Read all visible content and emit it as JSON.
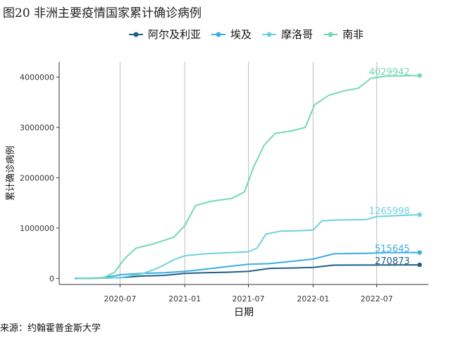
{
  "title": "图20 非洲主要疫情国家累计确诊病例",
  "source": "来源：约翰霍普金斯大学",
  "chart_data": {
    "type": "line",
    "title": "图20 非洲主要疫情国家累计确诊病例",
    "xlabel": "日期",
    "ylabel": "累计确诊病例",
    "x_ticks": [
      "2020-07",
      "2021-01",
      "2021-07",
      "2022-01",
      "2022-07"
    ],
    "y_ticks": [
      "0",
      "1000000",
      "2000000",
      "3000000",
      "4000000"
    ],
    "ylim": [
      -120000,
      4300000
    ],
    "xlim": [
      "2020-01-10",
      "2022-11-25"
    ],
    "grid": "vertical major lines only",
    "legend_position": "top",
    "series": [
      {
        "name": "阿尔及利亚",
        "color": "#1f5f87",
        "end_label": "270873",
        "points": [
          [
            "2020-02-25",
            0
          ],
          [
            "2020-05-01",
            4000
          ],
          [
            "2020-07-01",
            15000
          ],
          [
            "2020-09-01",
            48000
          ],
          [
            "2020-11-01",
            60000
          ],
          [
            "2021-01-01",
            100000
          ],
          [
            "2021-03-01",
            115000
          ],
          [
            "2021-05-01",
            123000
          ],
          [
            "2021-07-01",
            140000
          ],
          [
            "2021-09-01",
            200000
          ],
          [
            "2021-11-01",
            207000
          ],
          [
            "2022-01-01",
            220000
          ],
          [
            "2022-03-01",
            265000
          ],
          [
            "2022-06-01",
            266000
          ],
          [
            "2022-10-31",
            270873
          ]
        ]
      },
      {
        "name": "埃及",
        "color": "#3aaee0",
        "end_label": "515645",
        "points": [
          [
            "2020-02-25",
            0
          ],
          [
            "2020-05-01",
            7000
          ],
          [
            "2020-06-15",
            50000
          ],
          [
            "2020-07-01",
            75000
          ],
          [
            "2020-09-01",
            100000
          ],
          [
            "2020-11-01",
            112000
          ],
          [
            "2021-01-01",
            140000
          ],
          [
            "2021-03-01",
            185000
          ],
          [
            "2021-05-01",
            235000
          ],
          [
            "2021-07-01",
            283000
          ],
          [
            "2021-09-01",
            296000
          ],
          [
            "2021-11-01",
            340000
          ],
          [
            "2022-01-01",
            385000
          ],
          [
            "2022-03-01",
            490000
          ],
          [
            "2022-06-01",
            500000
          ],
          [
            "2022-08-01",
            512000
          ],
          [
            "2022-10-31",
            515645
          ]
        ]
      },
      {
        "name": "摩洛哥",
        "color": "#6fd1dc",
        "end_label": "1265998",
        "points": [
          [
            "2020-03-01",
            0
          ],
          [
            "2020-06-01",
            9000
          ],
          [
            "2020-07-01",
            16000
          ],
          [
            "2020-09-01",
            90000
          ],
          [
            "2020-10-15",
            200000
          ],
          [
            "2020-12-01",
            370000
          ],
          [
            "2021-01-01",
            450000
          ],
          [
            "2021-03-01",
            490000
          ],
          [
            "2021-05-01",
            510000
          ],
          [
            "2021-07-01",
            530000
          ],
          [
            "2021-07-25",
            600000
          ],
          [
            "2021-08-20",
            880000
          ],
          [
            "2021-10-01",
            940000
          ],
          [
            "2021-12-01",
            950000
          ],
          [
            "2022-01-01",
            960000
          ],
          [
            "2022-01-25",
            1140000
          ],
          [
            "2022-03-01",
            1160000
          ],
          [
            "2022-06-01",
            1170000
          ],
          [
            "2022-07-01",
            1230000
          ],
          [
            "2022-10-31",
            1265998
          ]
        ]
      },
      {
        "name": "南非",
        "color": "#74d8b4",
        "end_label": "4029942",
        "points": [
          [
            "2020-03-05",
            0
          ],
          [
            "2020-05-15",
            15000
          ],
          [
            "2020-06-15",
            120000
          ],
          [
            "2020-07-15",
            400000
          ],
          [
            "2020-08-15",
            600000
          ],
          [
            "2020-10-01",
            680000
          ],
          [
            "2020-12-01",
            820000
          ],
          [
            "2021-01-01",
            1050000
          ],
          [
            "2021-02-01",
            1450000
          ],
          [
            "2021-03-15",
            1530000
          ],
          [
            "2021-05-15",
            1590000
          ],
          [
            "2021-06-20",
            1720000
          ],
          [
            "2021-07-15",
            2200000
          ],
          [
            "2021-08-15",
            2650000
          ],
          [
            "2021-09-15",
            2880000
          ],
          [
            "2021-11-01",
            2930000
          ],
          [
            "2021-12-10",
            3000000
          ],
          [
            "2022-01-05",
            3450000
          ],
          [
            "2022-02-15",
            3640000
          ],
          [
            "2022-04-01",
            3730000
          ],
          [
            "2022-05-10",
            3780000
          ],
          [
            "2022-06-15",
            3980000
          ],
          [
            "2022-08-01",
            4020000
          ],
          [
            "2022-10-31",
            4029942
          ]
        ]
      }
    ]
  }
}
